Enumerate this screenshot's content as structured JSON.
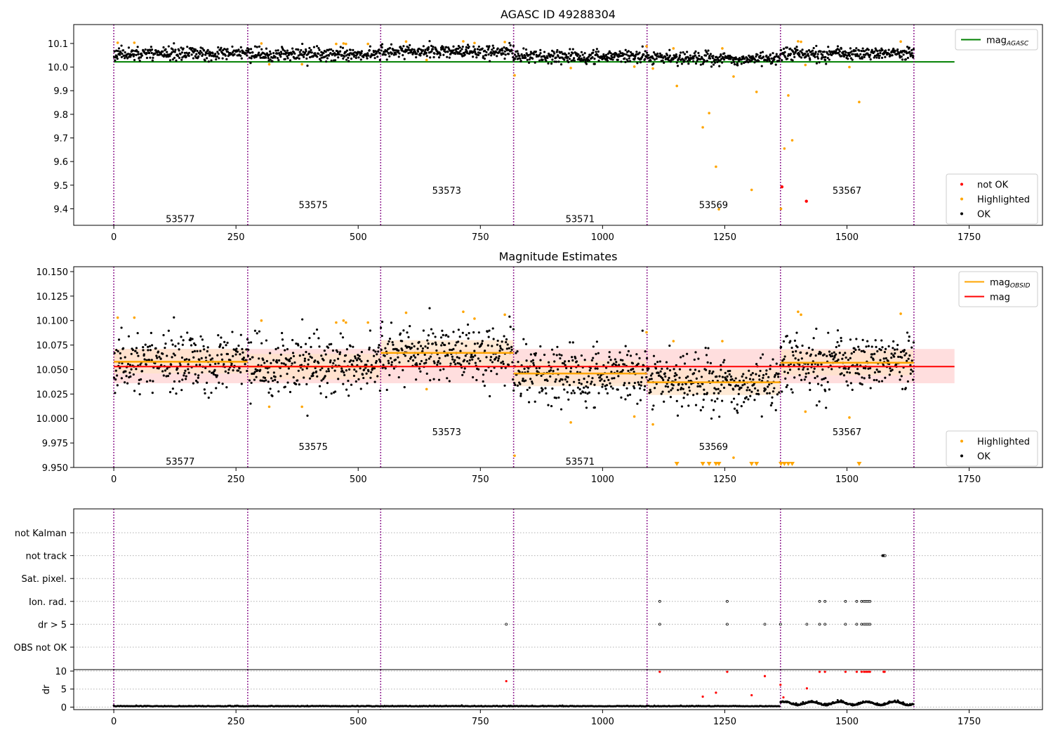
{
  "chart_data": [
    {
      "type": "scatter",
      "title": "AGASC ID 49288304",
      "xlim": [
        -82,
        1900
      ],
      "ylim": [
        9.33,
        10.18
      ],
      "x_ticks": [
        0,
        250,
        500,
        750,
        1000,
        1250,
        1500,
        1750
      ],
      "y_ticks": [
        9.4,
        9.5,
        9.6,
        9.7,
        9.8,
        9.9,
        10.0,
        10.1
      ],
      "y_tick_decimals": 1,
      "obsid_boundaries": [
        0,
        274,
        546,
        818,
        1091,
        1364,
        1637
      ],
      "obsid_labels": [
        {
          "text": "53577",
          "x": 136,
          "y": 9.358
        },
        {
          "text": "53575",
          "x": 408,
          "y": 9.418
        },
        {
          "text": "53573",
          "x": 681,
          "y": 9.478
        },
        {
          "text": "53571",
          "x": 954,
          "y": 9.358
        },
        {
          "text": "53569",
          "x": 1227,
          "y": 9.418
        },
        {
          "text": "53567",
          "x": 1500,
          "y": 9.478
        }
      ],
      "reference_line": {
        "name": "mag_AGASC",
        "y": 10.022,
        "x_range": [
          0,
          1720
        ],
        "color": "#008000"
      },
      "legends": [
        {
          "position": "top-right",
          "entries": [
            {
              "label": "mag",
              "sub": "AGASC",
              "marker": "line",
              "color": "#008000"
            }
          ]
        },
        {
          "position": "bottom-right",
          "entries": [
            {
              "label": "not OK",
              "marker": "dot",
              "color": "#ff0000"
            },
            {
              "label": "Highlighted",
              "marker": "dot",
              "color": "#ffa500"
            },
            {
              "label": "OK",
              "marker": "dot",
              "color": "#000000"
            }
          ]
        }
      ],
      "series": [
        {
          "name": "OK",
          "color": "#000000",
          "segment_means": [
            10.058,
            10.053,
            10.067,
            10.046,
            10.037,
            10.057
          ],
          "spread": 0.016
        },
        {
          "name": "Highlighted",
          "color": "#ffa500",
          "points": [
            [
              8,
              10.103
            ],
            [
              42,
              10.103
            ],
            [
              302,
              10.1
            ],
            [
              318,
              10.012
            ],
            [
              385,
              10.012
            ],
            [
              455,
              10.098
            ],
            [
              470,
              10.1
            ],
            [
              475,
              10.098
            ],
            [
              520,
              10.098
            ],
            [
              598,
              10.108
            ],
            [
              640,
              10.03
            ],
            [
              715,
              10.109
            ],
            [
              738,
              10.102
            ],
            [
              800,
              10.106
            ],
            [
              820,
              9.965
            ],
            [
              935,
              9.996
            ],
            [
              1065,
              10.002
            ],
            [
              1090,
              10.088
            ],
            [
              1103,
              9.994
            ],
            [
              1145,
              10.079
            ],
            [
              1152,
              9.92
            ],
            [
              1205,
              9.745
            ],
            [
              1218,
              9.805
            ],
            [
              1232,
              9.578
            ],
            [
              1238,
              9.398
            ],
            [
              1245,
              10.079
            ],
            [
              1268,
              9.96
            ],
            [
              1305,
              9.48
            ],
            [
              1315,
              9.895
            ],
            [
              1365,
              9.4
            ],
            [
              1372,
              9.655
            ],
            [
              1380,
              9.88
            ],
            [
              1388,
              9.69
            ],
            [
              1400,
              10.109
            ],
            [
              1406,
              10.107
            ],
            [
              1415,
              10.009
            ],
            [
              1505,
              10.0
            ],
            [
              1525,
              9.852
            ],
            [
              1610,
              10.108
            ]
          ]
        },
        {
          "name": "not OK",
          "color": "#ff0000",
          "points": [
            [
              1367,
              9.493
            ],
            [
              1417,
              9.432
            ]
          ]
        }
      ]
    },
    {
      "type": "scatter",
      "title": "Magnitude Estimates",
      "xlim": [
        -82,
        1900
      ],
      "ylim": [
        9.95,
        10.155
      ],
      "x_ticks": [
        0,
        250,
        500,
        750,
        1000,
        1250,
        1500,
        1750
      ],
      "y_ticks": [
        9.95,
        9.975,
        10.0,
        10.025,
        10.05,
        10.075,
        10.1,
        10.125,
        10.15
      ],
      "y_tick_decimals": 3,
      "obsid_boundaries": [
        0,
        274,
        546,
        818,
        1091,
        1364,
        1637
      ],
      "obsid_labels": [
        {
          "text": "53577",
          "x": 136,
          "y": 9.9565
        },
        {
          "text": "53575",
          "x": 408,
          "y": 9.9715
        },
        {
          "text": "53573",
          "x": 681,
          "y": 9.9865
        },
        {
          "text": "53571",
          "x": 954,
          "y": 9.9565
        },
        {
          "text": "53569",
          "x": 1227,
          "y": 9.9715
        },
        {
          "text": "53567",
          "x": 1500,
          "y": 9.9865
        }
      ],
      "mag_line": {
        "name": "mag",
        "y": 10.053,
        "band": [
          10.036,
          10.071
        ],
        "x_range": [
          0,
          1720
        ],
        "color": "#ff0000",
        "band_color": "#ffd6d6"
      },
      "obsid_means": {
        "name": "mag_OBSID",
        "color": "#ffa500",
        "band_color": "#ffe3c8",
        "segments": [
          {
            "x": [
              0,
              274
            ],
            "y": 10.058,
            "band": [
              10.046,
              10.071
            ]
          },
          {
            "x": [
              274,
              546
            ],
            "y": 10.053,
            "band": [
              10.04,
              10.066
            ]
          },
          {
            "x": [
              546,
              818
            ],
            "y": 10.067,
            "band": [
              10.054,
              10.08
            ]
          },
          {
            "x": [
              818,
              1091
            ],
            "y": 10.046,
            "band": [
              10.033,
              10.059
            ]
          },
          {
            "x": [
              1091,
              1364
            ],
            "y": 10.037,
            "band": [
              10.024,
              10.05
            ]
          },
          {
            "x": [
              1364,
              1637
            ],
            "y": 10.057,
            "band": [
              10.044,
              10.07
            ]
          }
        ]
      },
      "legends": [
        {
          "position": "top-right",
          "entries": [
            {
              "label": "mag",
              "sub": "OBSID",
              "marker": "line",
              "color": "#ffa500"
            },
            {
              "label": "mag",
              "marker": "line",
              "color": "#ff0000"
            }
          ]
        },
        {
          "position": "bottom-right",
          "entries": [
            {
              "label": "Highlighted",
              "marker": "dot",
              "color": "#ffa500"
            },
            {
              "label": "OK",
              "marker": "dot",
              "color": "#000000"
            }
          ]
        }
      ],
      "series": [
        {
          "name": "OK",
          "color": "#000000",
          "segment_means": [
            10.058,
            10.053,
            10.067,
            10.046,
            10.037,
            10.057
          ],
          "spread": 0.017
        },
        {
          "name": "Highlighted",
          "color": "#ffa500",
          "points": [
            [
              8,
              10.103
            ],
            [
              42,
              10.103
            ],
            [
              302,
              10.1
            ],
            [
              318,
              10.012
            ],
            [
              385,
              10.012
            ],
            [
              455,
              10.098
            ],
            [
              470,
              10.1
            ],
            [
              475,
              10.098
            ],
            [
              520,
              10.098
            ],
            [
              598,
              10.108
            ],
            [
              640,
              10.03
            ],
            [
              715,
              10.109
            ],
            [
              738,
              10.102
            ],
            [
              800,
              10.106
            ],
            [
              820,
              9.962
            ],
            [
              935,
              9.996
            ],
            [
              1065,
              10.002
            ],
            [
              1090,
              10.088
            ],
            [
              1103,
              9.994
            ],
            [
              1145,
              10.079
            ],
            [
              1245,
              10.079
            ],
            [
              1268,
              9.96
            ],
            [
              1400,
              10.109
            ],
            [
              1406,
              10.106
            ],
            [
              1415,
              10.007
            ],
            [
              1505,
              10.001
            ],
            [
              1610,
              10.107
            ]
          ]
        },
        {
          "name": "Highlighted (below range)",
          "color": "#ffa500",
          "points": [
            [
              1152,
              9.95
            ],
            [
              1205,
              9.95
            ],
            [
              1218,
              9.95
            ],
            [
              1232,
              9.95
            ],
            [
              1238,
              9.95
            ],
            [
              1305,
              9.95
            ],
            [
              1315,
              9.95
            ],
            [
              1365,
              9.95
            ],
            [
              1372,
              9.95
            ],
            [
              1380,
              9.95
            ],
            [
              1388,
              9.95
            ],
            [
              1525,
              9.95
            ]
          ]
        }
      ]
    },
    {
      "type": "scatter",
      "xlim": [
        -82,
        1900
      ],
      "categories": [
        "not Kalman",
        "not track",
        "Sat. pixel.",
        "Ion. rad.",
        "dr > 5",
        "OBS not OK"
      ],
      "obsid_boundaries": [
        0,
        274,
        546,
        818,
        1091,
        1364,
        1637
      ],
      "flags": {
        "not track": [
          1573,
          1574,
          1575,
          1576,
          1577,
          1578
        ],
        "Ion. rad.": [
          1117,
          1255,
          1444,
          1455,
          1497,
          1520,
          1530,
          1535,
          1539,
          1543,
          1547
        ],
        "dr > 5": [
          803,
          1117,
          1255,
          1332,
          1364,
          1418,
          1444,
          1455,
          1497,
          1520,
          1530,
          1535,
          1539,
          1543,
          1547
        ]
      }
    },
    {
      "type": "scatter",
      "xlim": [
        -82,
        1900
      ],
      "ylim": [
        -0.7,
        10.4
      ],
      "ylabel": "dr",
      "y_ticks": [
        0,
        5,
        10
      ],
      "obsid_boundaries": [
        0,
        274,
        546,
        818,
        1091,
        1364,
        1637
      ],
      "series": [
        {
          "name": "ok",
          "color": "#000000",
          "baseline": 0.2
        },
        {
          "name": "flagged",
          "color": "#ff0000",
          "points": [
            [
              803,
              7.2
            ],
            [
              1117,
              9.8
            ],
            [
              1205,
              2.9
            ],
            [
              1232,
              4.0
            ],
            [
              1255,
              9.8
            ],
            [
              1305,
              3.3
            ],
            [
              1332,
              8.6
            ],
            [
              1364,
              6.2
            ],
            [
              1370,
              2.7
            ],
            [
              1418,
              5.2
            ],
            [
              1444,
              9.8
            ],
            [
              1455,
              9.8
            ],
            [
              1497,
              9.8
            ],
            [
              1520,
              9.8
            ],
            [
              1530,
              9.8
            ],
            [
              1535,
              9.8
            ],
            [
              1539,
              9.8
            ],
            [
              1543,
              9.8
            ],
            [
              1547,
              9.8
            ],
            [
              1575,
              9.8
            ],
            [
              1577,
              9.8
            ]
          ]
        }
      ]
    }
  ]
}
